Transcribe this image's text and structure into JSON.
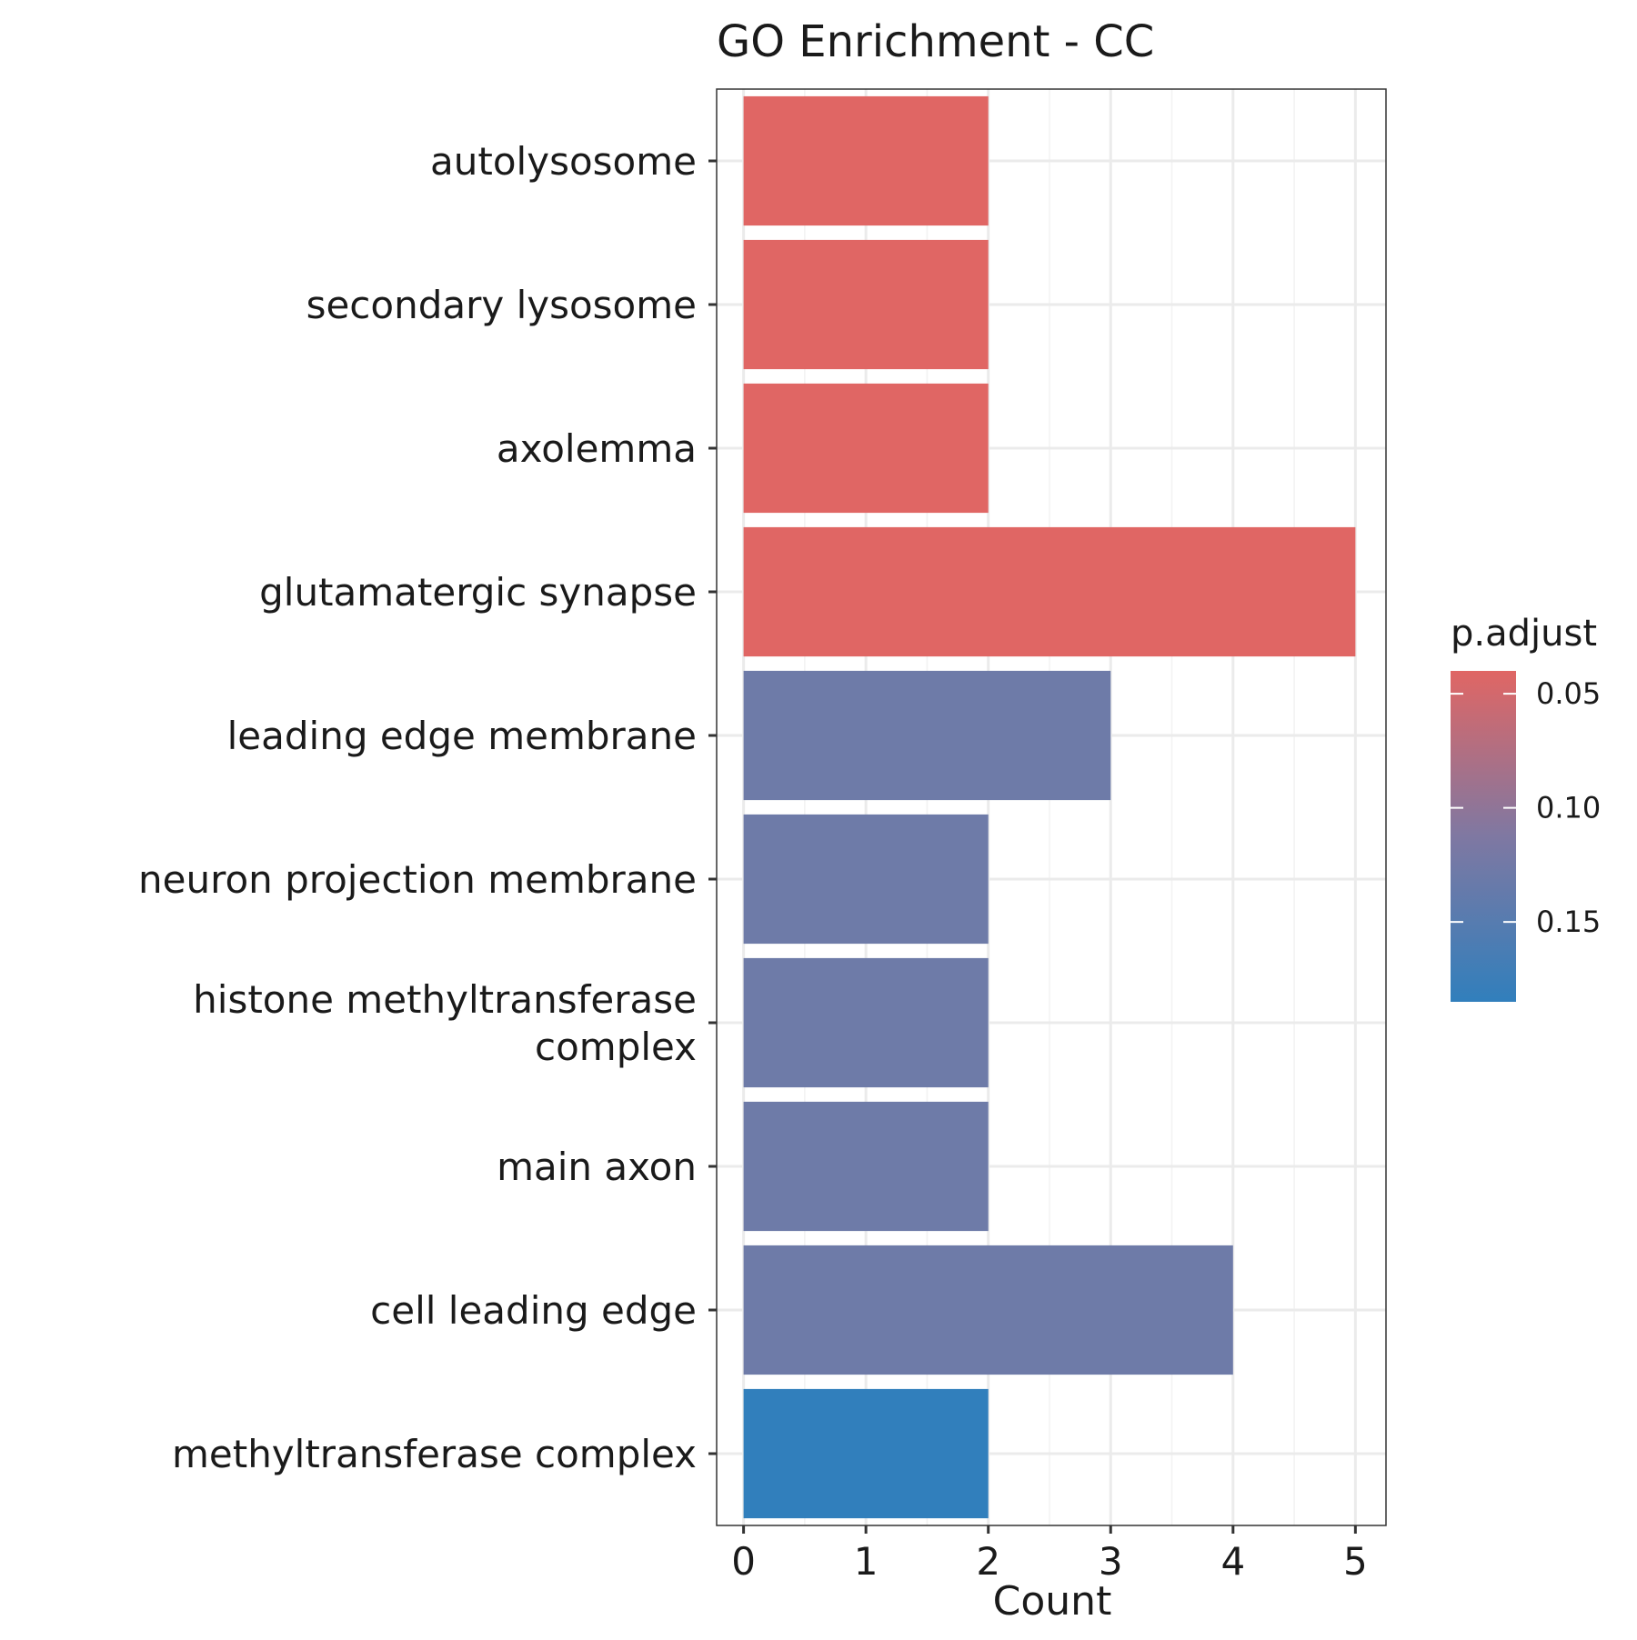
{
  "chart_data": {
    "type": "bar",
    "orientation": "horizontal",
    "title": "GO Enrichment - CC",
    "xlabel": "Count",
    "ylabel": "",
    "xlim": [
      -0.22,
      5.25
    ],
    "xticks": [
      0,
      1,
      2,
      3,
      4,
      5
    ],
    "grid": true,
    "categories": [
      "autolysosome",
      "secondary lysosome",
      "axolemma",
      "glutamatergic synapse",
      "leading edge membrane",
      "neuron projection membrane",
      "histone methyltransferase complex",
      "main axon",
      "cell leading edge",
      "methyltransferase complex"
    ],
    "category_lines": [
      [
        "autolysosome"
      ],
      [
        "secondary lysosome"
      ],
      [
        "axolemma"
      ],
      [
        "glutamatergic synapse"
      ],
      [
        "leading edge membrane"
      ],
      [
        "neuron projection membrane"
      ],
      [
        "histone methyltransferase",
        "complex"
      ],
      [
        "main axon"
      ],
      [
        "cell leading edge"
      ],
      [
        "methyltransferase complex"
      ]
    ],
    "values": [
      2,
      2,
      2,
      5,
      3,
      2,
      2,
      2,
      4,
      2
    ],
    "bar_colors": [
      "#E06664",
      "#E06664",
      "#E06664",
      "#E06664",
      "#6E7BA8",
      "#6E7BA8",
      "#6E7BA8",
      "#6E7BA8",
      "#6E7BA8",
      "#317FBC"
    ],
    "legend": {
      "title": "p.adjust",
      "placement": "right",
      "type": "colorbar",
      "colors_top_to_bottom": [
        "#E06664",
        "#7F78A2",
        "#317FBC"
      ],
      "range": [
        0.04,
        0.185
      ],
      "ticks": [
        0.05,
        0.1,
        0.15
      ],
      "tick_labels": [
        "0.05",
        "0.10",
        "0.15"
      ]
    }
  }
}
